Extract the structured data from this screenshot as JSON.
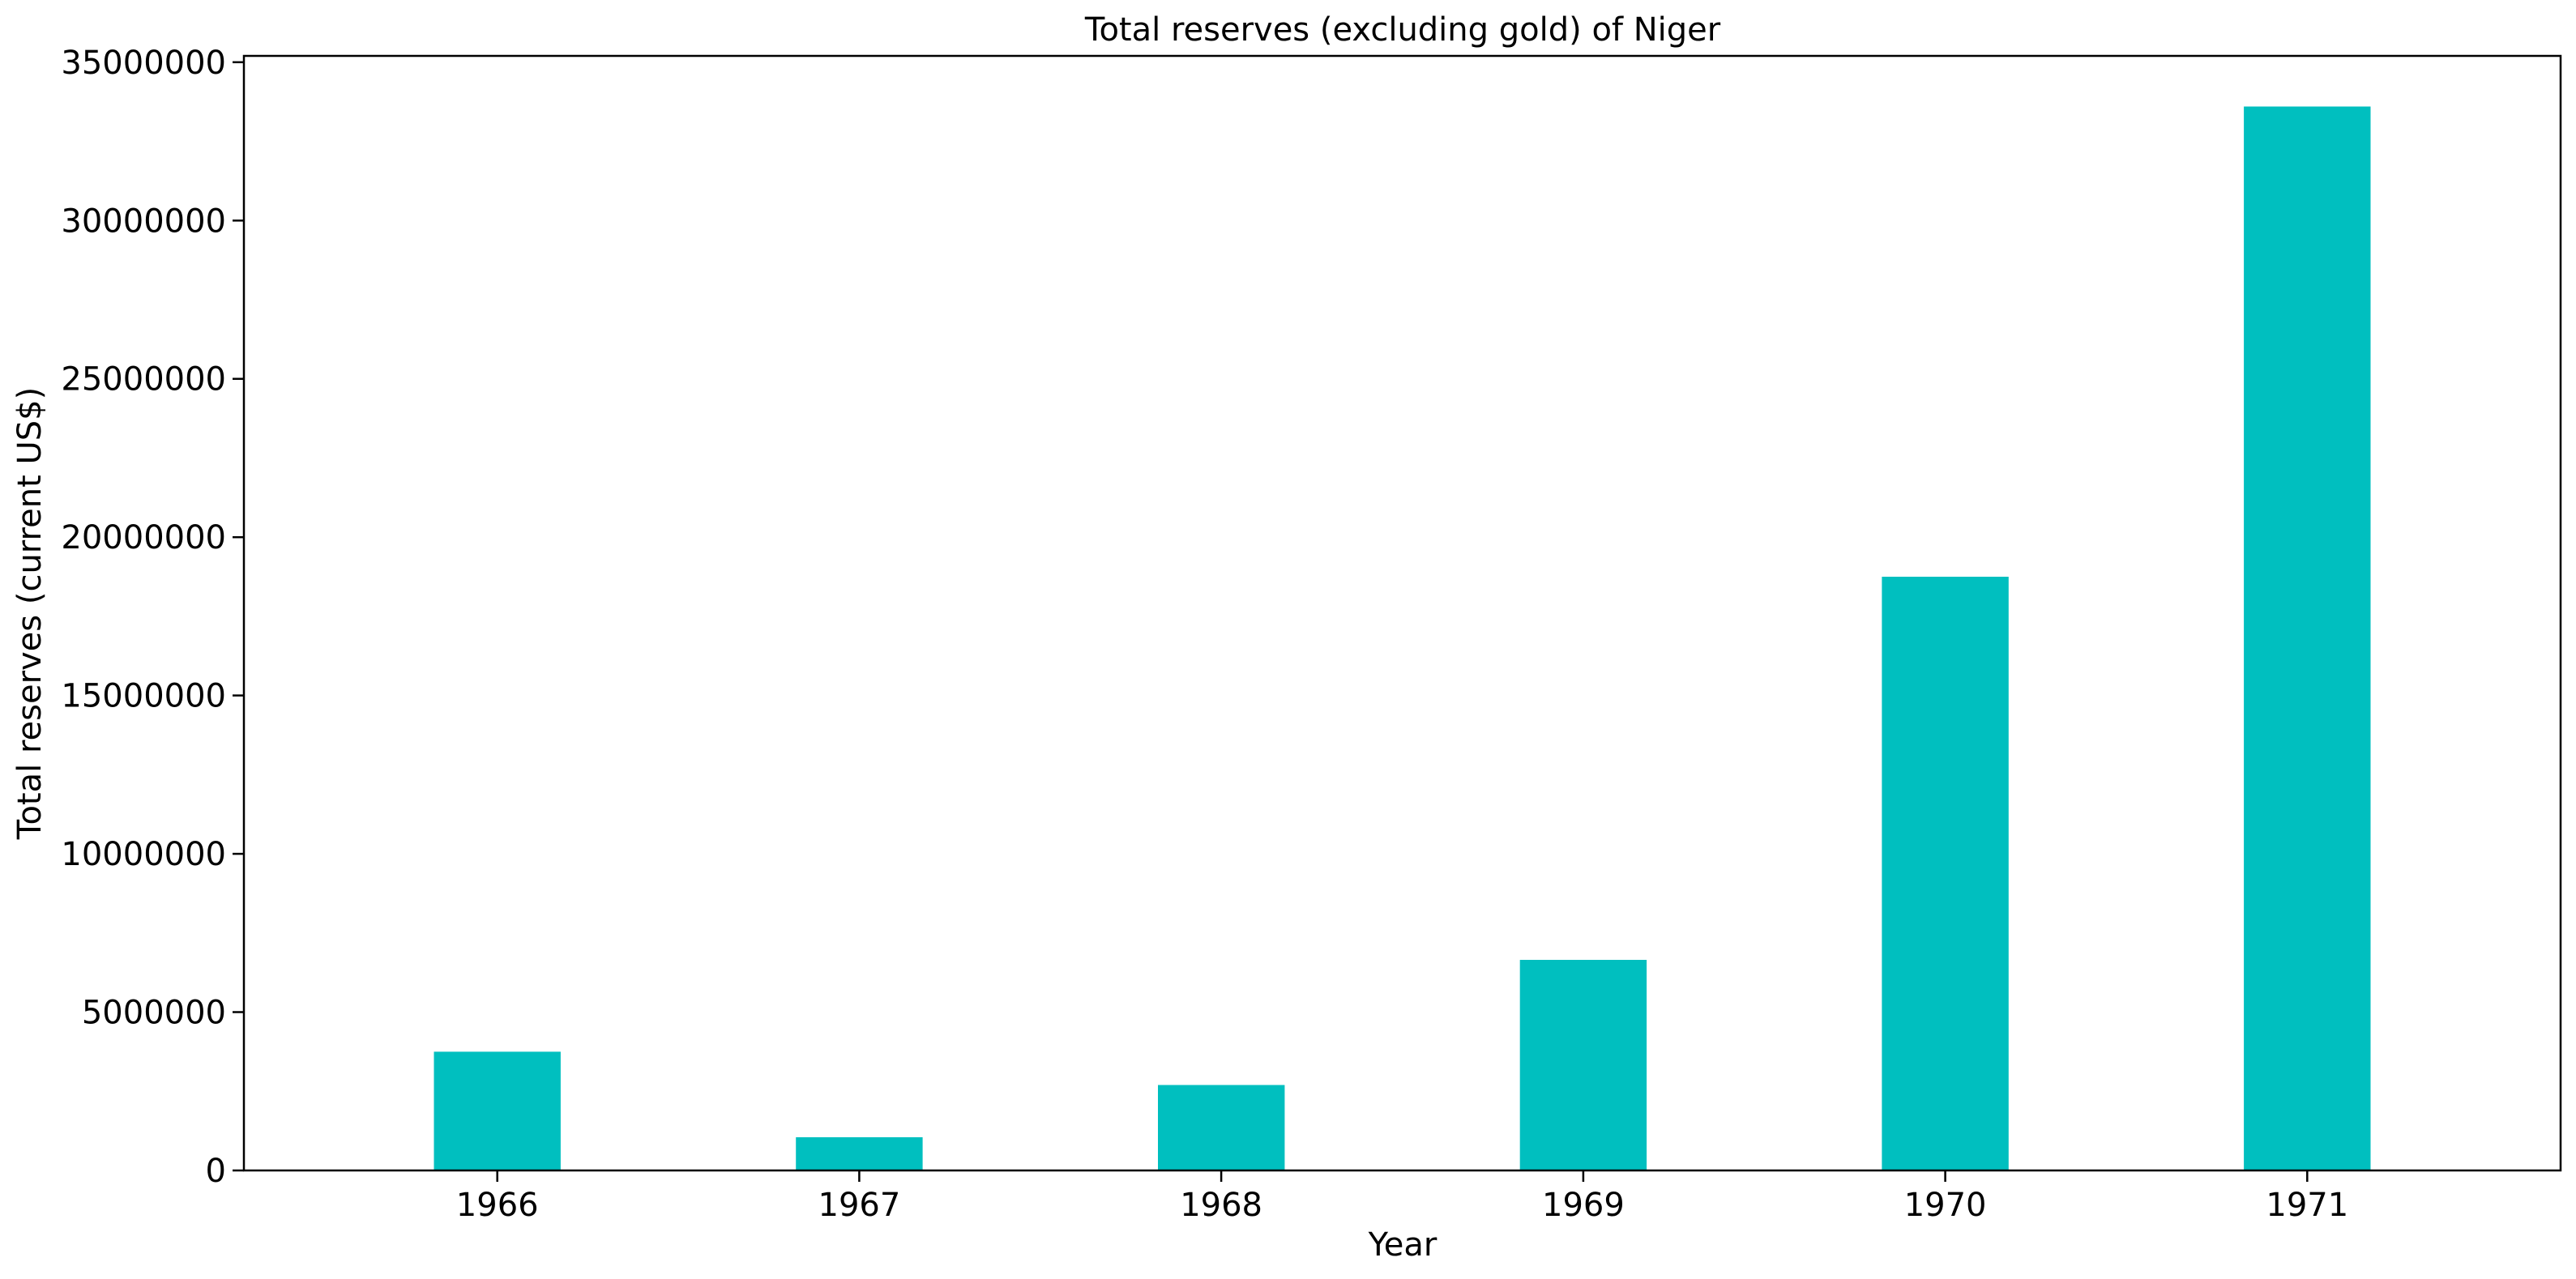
{
  "chart_data": {
    "type": "bar",
    "title": "Total reserves (excluding gold) of Niger",
    "xlabel": "Year",
    "ylabel": "Total reserves (current US$)",
    "categories": [
      "1966",
      "1967",
      "1968",
      "1969",
      "1970",
      "1971"
    ],
    "values": [
      3750000,
      1050000,
      2700000,
      6650000,
      18750000,
      33600000
    ],
    "ylim": [
      0,
      35200000
    ],
    "yticks": [
      0,
      5000000,
      10000000,
      15000000,
      20000000,
      25000000,
      30000000,
      35000000
    ],
    "ytick_labels": [
      "0",
      "5000000",
      "10000000",
      "15000000",
      "20000000",
      "25000000",
      "30000000",
      "35000000"
    ],
    "bar_color": "#00bfbf",
    "grid": false,
    "legend": "none"
  }
}
